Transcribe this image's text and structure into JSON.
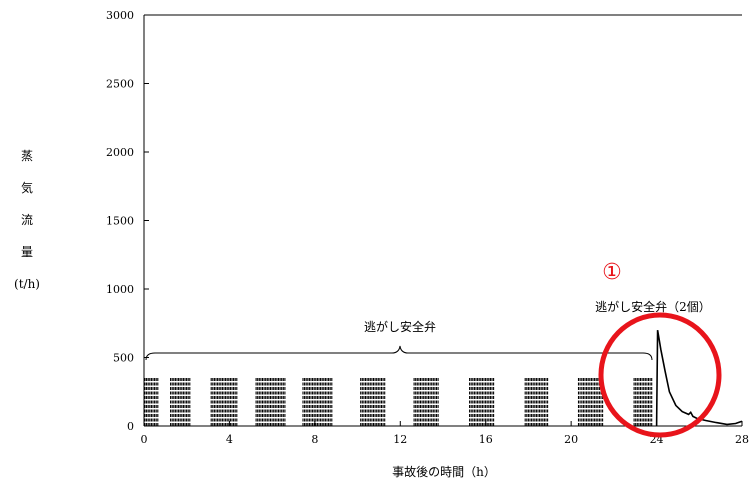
{
  "chart_data": {
    "type": "line",
    "title": "",
    "xlabel": "事故後の時間（h）",
    "ylabel_chars": [
      "蒸",
      "気",
      "流",
      "量",
      "(t/h)"
    ],
    "xlim": [
      0,
      28
    ],
    "ylim": [
      0,
      3000
    ],
    "xticks": [
      "0",
      "4",
      "8",
      "12",
      "16",
      "20",
      "24",
      "28"
    ],
    "yticks": [
      "0",
      "500",
      "1000",
      "1500",
      "2000",
      "2500",
      "3000"
    ],
    "grid": false,
    "relief_valve_open_periods_h": [
      [
        0,
        0.7
      ],
      [
        1.2,
        2.2
      ],
      [
        3.1,
        4.4
      ],
      [
        5.2,
        6.6
      ],
      [
        7.4,
        8.8
      ],
      [
        10.1,
        11.3
      ],
      [
        12.6,
        13.8
      ],
      [
        15.2,
        16.4
      ],
      [
        17.8,
        18.9
      ],
      [
        20.3,
        21.5
      ],
      [
        22.9,
        23.8
      ]
    ],
    "relief_valve_flow_t_per_h": 350,
    "series": [
      {
        "x": [
          24.0,
          24.05,
          24.2,
          24.4,
          24.6,
          24.9,
          25.2,
          25.5,
          25.6,
          25.7,
          25.9,
          26.3,
          26.8,
          27.3,
          27.7,
          28.0
        ],
        "y": [
          0,
          700,
          560,
          400,
          250,
          150,
          105,
          85,
          100,
          70,
          55,
          40,
          25,
          12,
          18,
          35
        ]
      }
    ],
    "annotations": {
      "brace_label": "逃がし安全弁",
      "marker": "①",
      "marker_label": "逃がし安全弁（2個）"
    },
    "highlight_color": "#e8141b"
  }
}
